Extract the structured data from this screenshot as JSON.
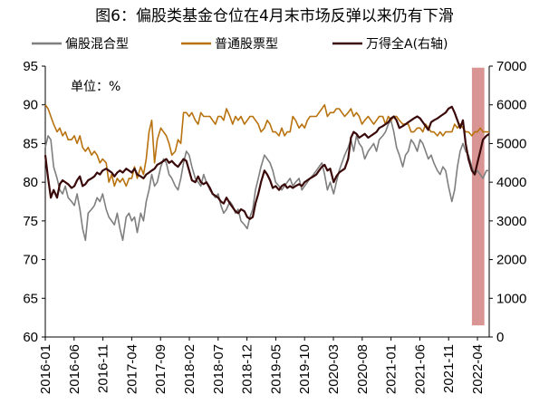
{
  "title": "图6：偏股类基金仓位在4月末市场反弹以来仍有下滑",
  "chart_data": {
    "type": "line",
    "title": "图6：偏股类基金仓位在4月末市场反弹以来仍有下滑",
    "unit_label": "单位：%",
    "left_axis": {
      "min": 60,
      "max": 95,
      "ticks": [
        "60",
        "65",
        "70",
        "75",
        "80",
        "85",
        "90",
        "95"
      ]
    },
    "right_axis": {
      "min": 0,
      "max": 7000,
      "ticks": [
        "0",
        "1000",
        "2000",
        "3000",
        "4000",
        "5000",
        "6000",
        "7000"
      ]
    },
    "x_start": 2016.0,
    "x_end": 2022.42,
    "x_ticks": [
      "2016-01",
      "2016-06",
      "2016-11",
      "2017-04",
      "2017-09",
      "2018-02",
      "2018-07",
      "2018-12",
      "2019-05",
      "2019-10",
      "2020-03",
      "2020-08",
      "2021-01",
      "2021-06",
      "2021-11",
      "2022-04"
    ],
    "highlight": {
      "from": 2022.17,
      "to": 2022.35,
      "y_top": 94.8,
      "y_bottom": 61.5,
      "color": "#d99594"
    },
    "series": [
      {
        "name": "偏股混合型",
        "axis": "left",
        "color": "#7f7f7f",
        "x": [
          2016.0,
          2016.04,
          2016.08,
          2016.12,
          2016.17,
          2016.21,
          2016.25,
          2016.29,
          2016.33,
          2016.38,
          2016.42,
          2016.46,
          2016.5,
          2016.54,
          2016.58,
          2016.62,
          2016.67,
          2016.71,
          2016.75,
          2016.79,
          2016.83,
          2016.88,
          2016.92,
          2016.96,
          2017.0,
          2017.04,
          2017.08,
          2017.12,
          2017.17,
          2017.21,
          2017.25,
          2017.29,
          2017.33,
          2017.38,
          2017.42,
          2017.46,
          2017.5,
          2017.54,
          2017.58,
          2017.62,
          2017.67,
          2017.71,
          2017.75,
          2017.79,
          2017.83,
          2017.88,
          2017.92,
          2017.96,
          2018.0,
          2018.04,
          2018.08,
          2018.12,
          2018.17,
          2018.21,
          2018.25,
          2018.29,
          2018.33,
          2018.38,
          2018.42,
          2018.46,
          2018.5,
          2018.54,
          2018.58,
          2018.62,
          2018.67,
          2018.71,
          2018.75,
          2018.79,
          2018.83,
          2018.88,
          2018.92,
          2018.96,
          2019.0,
          2019.04,
          2019.08,
          2019.12,
          2019.17,
          2019.21,
          2019.25,
          2019.29,
          2019.33,
          2019.38,
          2019.42,
          2019.46,
          2019.5,
          2019.54,
          2019.58,
          2019.62,
          2019.67,
          2019.71,
          2019.75,
          2019.79,
          2019.83,
          2019.88,
          2019.92,
          2019.96,
          2020.0,
          2020.04,
          2020.08,
          2020.12,
          2020.17,
          2020.21,
          2020.25,
          2020.29,
          2020.33,
          2020.38,
          2020.42,
          2020.46,
          2020.5,
          2020.54,
          2020.58,
          2020.62,
          2020.67,
          2020.71,
          2020.75,
          2020.79,
          2020.83,
          2020.88,
          2020.92,
          2020.96,
          2021.0,
          2021.04,
          2021.08,
          2021.12,
          2021.17,
          2021.21,
          2021.25,
          2021.29,
          2021.33,
          2021.38,
          2021.42,
          2021.46,
          2021.5,
          2021.54,
          2021.58,
          2021.62,
          2021.67,
          2021.71,
          2021.75,
          2021.79,
          2021.83,
          2021.88,
          2021.92,
          2021.96,
          2022.0,
          2022.04,
          2022.08,
          2022.12,
          2022.17,
          2022.21,
          2022.25,
          2022.29,
          2022.33,
          2022.38,
          2022.42
        ],
        "y": [
          84.5,
          86.0,
          85.5,
          82.0,
          80.5,
          79.0,
          78.5,
          79.5,
          78.0,
          77.5,
          77.0,
          78.5,
          76.5,
          74.0,
          72.5,
          76.0,
          76.5,
          77.0,
          78.0,
          77.5,
          78.5,
          76.5,
          75.5,
          75.0,
          74.5,
          76.0,
          74.0,
          72.5,
          75.5,
          76.0,
          75.0,
          75.5,
          73.5,
          76.0,
          75.0,
          77.5,
          79.0,
          81.0,
          79.5,
          80.0,
          82.0,
          83.0,
          82.5,
          81.0,
          80.5,
          79.5,
          79.0,
          80.5,
          82.5,
          84.0,
          83.5,
          82.0,
          80.5,
          80.0,
          79.5,
          81.0,
          80.0,
          79.0,
          78.5,
          78.0,
          78.5,
          77.0,
          76.0,
          76.5,
          77.5,
          77.0,
          76.0,
          76.5,
          75.0,
          74.5,
          74.0,
          75.5,
          76.5,
          79.0,
          80.5,
          82.0,
          83.5,
          83.0,
          82.5,
          81.5,
          80.0,
          79.5,
          79.0,
          79.5,
          80.0,
          80.5,
          79.5,
          80.0,
          80.5,
          79.0,
          79.5,
          80.0,
          80.5,
          81.0,
          81.5,
          82.0,
          82.5,
          81.0,
          79.0,
          80.0,
          78.5,
          80.0,
          81.5,
          82.5,
          83.5,
          84.5,
          85.5,
          84.0,
          86.0,
          85.0,
          84.5,
          83.0,
          84.0,
          84.5,
          85.0,
          84.0,
          85.5,
          86.0,
          86.5,
          87.5,
          88.0,
          86.5,
          84.5,
          83.5,
          82.0,
          83.5,
          84.0,
          85.5,
          85.0,
          84.0,
          85.5,
          85.0,
          84.0,
          83.0,
          83.5,
          82.5,
          81.5,
          81.0,
          82.0,
          81.5,
          79.5,
          77.5,
          79.0,
          82.0,
          84.0,
          85.0,
          84.0,
          83.5,
          82.0,
          81.0,
          81.5,
          81.0,
          80.5,
          81.5,
          81.5
        ]
      },
      {
        "name": "普通股票型",
        "axis": "left",
        "color": "#b8720e",
        "x": [
          2016.0,
          2016.04,
          2016.08,
          2016.12,
          2016.17,
          2016.21,
          2016.25,
          2016.29,
          2016.33,
          2016.38,
          2016.42,
          2016.46,
          2016.5,
          2016.54,
          2016.58,
          2016.62,
          2016.67,
          2016.71,
          2016.75,
          2016.79,
          2016.83,
          2016.88,
          2016.92,
          2016.96,
          2017.0,
          2017.04,
          2017.08,
          2017.12,
          2017.17,
          2017.21,
          2017.25,
          2017.29,
          2017.33,
          2017.38,
          2017.42,
          2017.46,
          2017.5,
          2017.54,
          2017.58,
          2017.62,
          2017.67,
          2017.71,
          2017.75,
          2017.79,
          2017.83,
          2017.88,
          2017.92,
          2017.96,
          2018.0,
          2018.04,
          2018.08,
          2018.12,
          2018.17,
          2018.21,
          2018.25,
          2018.29,
          2018.33,
          2018.38,
          2018.42,
          2018.46,
          2018.5,
          2018.54,
          2018.58,
          2018.62,
          2018.67,
          2018.71,
          2018.75,
          2018.79,
          2018.83,
          2018.88,
          2018.92,
          2018.96,
          2019.0,
          2019.04,
          2019.08,
          2019.12,
          2019.17,
          2019.21,
          2019.25,
          2019.29,
          2019.33,
          2019.38,
          2019.42,
          2019.46,
          2019.5,
          2019.54,
          2019.58,
          2019.62,
          2019.67,
          2019.71,
          2019.75,
          2019.79,
          2019.83,
          2019.88,
          2019.92,
          2019.96,
          2020.0,
          2020.04,
          2020.08,
          2020.12,
          2020.17,
          2020.21,
          2020.25,
          2020.29,
          2020.33,
          2020.38,
          2020.42,
          2020.46,
          2020.5,
          2020.54,
          2020.58,
          2020.62,
          2020.67,
          2020.71,
          2020.75,
          2020.79,
          2020.83,
          2020.88,
          2020.92,
          2020.96,
          2021.0,
          2021.04,
          2021.08,
          2021.12,
          2021.17,
          2021.21,
          2021.25,
          2021.29,
          2021.33,
          2021.38,
          2021.42,
          2021.46,
          2021.5,
          2021.54,
          2021.58,
          2021.62,
          2021.67,
          2021.71,
          2021.75,
          2021.79,
          2021.83,
          2021.88,
          2021.92,
          2021.96,
          2022.0,
          2022.04,
          2022.08,
          2022.12,
          2022.17,
          2022.21,
          2022.25,
          2022.29,
          2022.33,
          2022.38,
          2022.42
        ],
        "y": [
          90.0,
          89.5,
          88.5,
          87.5,
          86.5,
          87.0,
          86.0,
          86.5,
          85.5,
          85.5,
          86.0,
          85.0,
          86.0,
          84.5,
          84.0,
          84.5,
          83.5,
          84.0,
          83.5,
          82.5,
          83.0,
          82.5,
          80.0,
          81.0,
          79.5,
          80.5,
          80.0,
          80.5,
          79.5,
          80.5,
          80.5,
          82.0,
          80.5,
          82.0,
          81.0,
          83.0,
          86.5,
          88.0,
          82.5,
          85.5,
          87.0,
          86.5,
          86.0,
          85.0,
          83.5,
          84.0,
          85.5,
          85.0,
          89.0,
          89.0,
          88.5,
          89.0,
          88.0,
          87.5,
          89.0,
          88.5,
          88.5,
          88.5,
          88.0,
          87.5,
          88.5,
          88.5,
          88.0,
          89.5,
          88.5,
          87.5,
          88.5,
          88.0,
          88.5,
          87.5,
          88.0,
          88.5,
          88.5,
          88.0,
          87.5,
          86.5,
          87.0,
          88.0,
          87.5,
          86.5,
          86.5,
          86.0,
          87.0,
          86.0,
          86.5,
          86.5,
          88.5,
          88.0,
          87.0,
          87.5,
          87.0,
          88.0,
          88.5,
          88.5,
          88.5,
          89.0,
          89.5,
          90.0,
          88.5,
          89.0,
          89.0,
          89.5,
          89.5,
          89.0,
          88.5,
          89.0,
          89.5,
          88.5,
          89.0,
          88.5,
          87.5,
          88.0,
          88.5,
          88.0,
          87.5,
          88.0,
          88.5,
          88.5,
          87.5,
          88.5,
          88.0,
          88.5,
          88.5,
          88.0,
          87.5,
          87.5,
          87.5,
          86.5,
          86.5,
          87.0,
          87.0,
          86.5,
          87.5,
          87.0,
          86.5,
          86.5,
          86.0,
          86.5,
          86.0,
          86.5,
          86.5,
          86.5,
          87.5,
          87.0,
          87.5,
          87.0,
          86.5,
          86.5,
          86.0,
          86.5,
          86.5,
          87.0,
          86.5,
          86.5,
          86.5
        ]
      },
      {
        "name": "万得全A(右轴)",
        "axis": "right",
        "color": "#3a0a0a",
        "x": [
          2016.0,
          2016.04,
          2016.08,
          2016.12,
          2016.17,
          2016.21,
          2016.25,
          2016.29,
          2016.33,
          2016.38,
          2016.42,
          2016.46,
          2016.5,
          2016.54,
          2016.58,
          2016.62,
          2016.67,
          2016.71,
          2016.75,
          2016.79,
          2016.83,
          2016.88,
          2016.92,
          2016.96,
          2017.0,
          2017.04,
          2017.08,
          2017.12,
          2017.17,
          2017.21,
          2017.25,
          2017.29,
          2017.33,
          2017.38,
          2017.42,
          2017.46,
          2017.5,
          2017.54,
          2017.58,
          2017.62,
          2017.67,
          2017.71,
          2017.75,
          2017.79,
          2017.83,
          2017.88,
          2017.92,
          2017.96,
          2018.0,
          2018.04,
          2018.08,
          2018.12,
          2018.17,
          2018.21,
          2018.25,
          2018.29,
          2018.33,
          2018.38,
          2018.42,
          2018.46,
          2018.5,
          2018.54,
          2018.58,
          2018.62,
          2018.67,
          2018.71,
          2018.75,
          2018.79,
          2018.83,
          2018.88,
          2018.92,
          2018.96,
          2019.0,
          2019.04,
          2019.08,
          2019.12,
          2019.17,
          2019.21,
          2019.25,
          2019.29,
          2019.33,
          2019.38,
          2019.42,
          2019.46,
          2019.5,
          2019.54,
          2019.58,
          2019.62,
          2019.67,
          2019.71,
          2019.75,
          2019.79,
          2019.83,
          2019.88,
          2019.92,
          2019.96,
          2020.0,
          2020.04,
          2020.08,
          2020.12,
          2020.17,
          2020.21,
          2020.25,
          2020.29,
          2020.33,
          2020.38,
          2020.42,
          2020.46,
          2020.5,
          2020.54,
          2020.58,
          2020.62,
          2020.67,
          2020.71,
          2020.75,
          2020.79,
          2020.83,
          2020.88,
          2020.92,
          2020.96,
          2021.0,
          2021.04,
          2021.08,
          2021.12,
          2021.17,
          2021.21,
          2021.25,
          2021.29,
          2021.33,
          2021.38,
          2021.42,
          2021.46,
          2021.5,
          2021.54,
          2021.58,
          2021.62,
          2021.67,
          2021.71,
          2021.75,
          2021.79,
          2021.83,
          2021.88,
          2021.92,
          2021.96,
          2022.0,
          2022.04,
          2022.08,
          2022.12,
          2022.17,
          2022.21,
          2022.25,
          2022.29,
          2022.33,
          2022.38,
          2022.42
        ],
        "y": [
          4700,
          4100,
          3600,
          3800,
          3600,
          3950,
          4050,
          4000,
          3950,
          3850,
          3900,
          4050,
          4150,
          3900,
          3950,
          4050,
          4100,
          4150,
          4250,
          4200,
          4300,
          4350,
          4300,
          4250,
          4150,
          4250,
          4300,
          4250,
          4350,
          4300,
          4250,
          4350,
          4200,
          4150,
          4100,
          4200,
          4250,
          4300,
          4350,
          4450,
          4500,
          4550,
          4600,
          4500,
          4550,
          4450,
          4400,
          4500,
          4600,
          4550,
          4300,
          4050,
          4000,
          4150,
          4000,
          3950,
          4000,
          3850,
          3700,
          3650,
          3600,
          3500,
          3450,
          3600,
          3450,
          3350,
          3250,
          3200,
          3300,
          3250,
          3100,
          3050,
          3100,
          3450,
          3700,
          4000,
          4300,
          4200,
          4050,
          3850,
          3900,
          3800,
          3900,
          3950,
          3850,
          3900,
          3850,
          3900,
          3950,
          3900,
          4000,
          4050,
          4100,
          4150,
          4200,
          4300,
          4400,
          4450,
          4300,
          4350,
          4000,
          4150,
          4250,
          4300,
          4350,
          4600,
          5150,
          5300,
          5250,
          5150,
          5200,
          5250,
          5150,
          5200,
          5250,
          5300,
          5400,
          5450,
          5500,
          5550,
          5650,
          5700,
          5600,
          5400,
          5450,
          5500,
          5550,
          5600,
          5650,
          5700,
          5650,
          5550,
          5450,
          5350,
          5550,
          5600,
          5650,
          5700,
          5750,
          5800,
          5900,
          5950,
          5800,
          5600,
          5400,
          5600,
          5000,
          4600,
          4300,
          4200,
          4500,
          4800,
          5100,
          5200,
          5250
        ]
      }
    ]
  },
  "legend": [
    {
      "label": "偏股混合型",
      "color": "#7f7f7f"
    },
    {
      "label": "普通股票型",
      "color": "#b8720e"
    },
    {
      "label": "万得全A(右轴)",
      "color": "#3a0a0a"
    }
  ]
}
